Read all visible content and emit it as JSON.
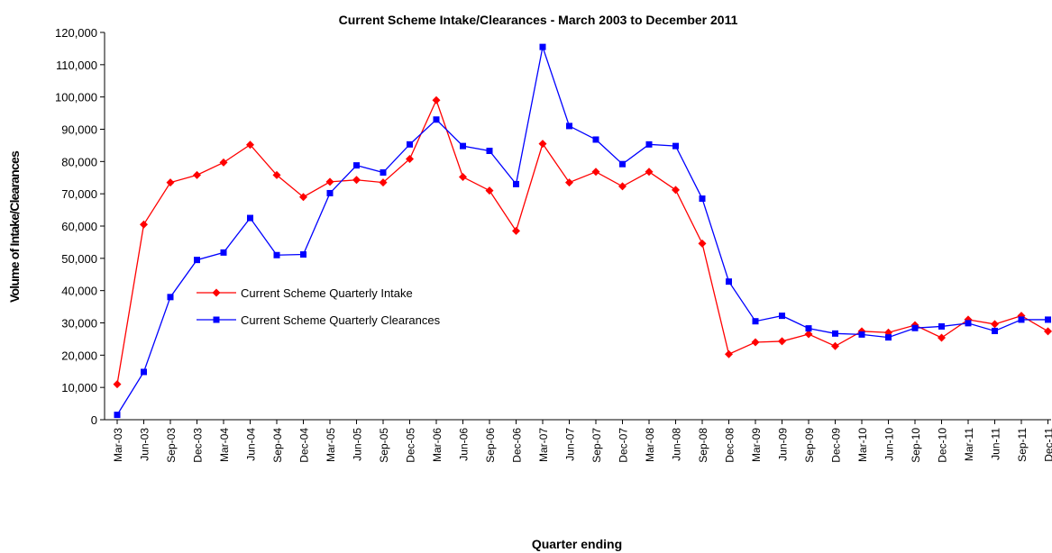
{
  "chart_data": {
    "type": "line",
    "title": "Current Scheme Intake/Clearances - March 2003 to December 2011",
    "x_label": "Quarter ending",
    "y_label": "Volume of Intake/Clearances",
    "categories": [
      "Mar-03",
      "Jun-03",
      "Sep-03",
      "Dec-03",
      "Mar-04",
      "Jun-04",
      "Sep-04",
      "Dec-04",
      "Mar-05",
      "Jun-05",
      "Sep-05",
      "Dec-05",
      "Mar-06",
      "Jun-06",
      "Sep-06",
      "Dec-06",
      "Mar-07",
      "Jun-07",
      "Sep-07",
      "Dec-07",
      "Mar-08",
      "Jun-08",
      "Sep-08",
      "Dec-08",
      "Mar-09",
      "Jun-09",
      "Sep-09",
      "Dec-09",
      "Mar-10",
      "Jun-10",
      "Sep-10",
      "Dec-10",
      "Mar-11",
      "Jun-11",
      "Sep-11",
      "Dec-11"
    ],
    "series": [
      {
        "name": "Current Scheme Quarterly Intake",
        "color": "#ff0000",
        "marker": "diamond",
        "values": [
          11000,
          60500,
          73500,
          75800,
          79700,
          85200,
          75800,
          69000,
          73700,
          74300,
          73500,
          80800,
          99000,
          75200,
          71000,
          58500,
          85500,
          73500,
          76800,
          72300,
          76800,
          71200,
          54600,
          20300,
          24000,
          24300,
          26500,
          22800,
          27400,
          27000,
          29300,
          25400,
          31000,
          29600,
          32200,
          27400
        ]
      },
      {
        "name": "Current Scheme Quarterly Clearances",
        "color": "#0000ff",
        "marker": "square",
        "values": [
          1500,
          14800,
          38000,
          49500,
          51800,
          62500,
          51000,
          51200,
          70200,
          78800,
          76600,
          85300,
          93000,
          84800,
          83300,
          73000,
          115500,
          91000,
          86800,
          79200,
          85300,
          84800,
          68500,
          42800,
          30500,
          32200,
          28300,
          26700,
          26400,
          25500,
          28400,
          28900,
          29900,
          27500,
          31000,
          31000
        ]
      }
    ],
    "ylim": [
      0,
      120000
    ],
    "yticks": [
      0,
      {
        "value": 10000,
        "label": "10,000"
      },
      {
        "value": 20000,
        "label": "20,000"
      },
      {
        "value": 30000,
        "label": "30,000"
      },
      {
        "value": 40000,
        "label": "40,000"
      },
      {
        "value": 50000,
        "label": "50,000"
      },
      {
        "value": 60000,
        "label": "60,000"
      },
      {
        "value": 70000,
        "label": "70,000"
      },
      {
        "value": 80000,
        "label": "80,000"
      },
      {
        "value": 90000,
        "label": "90,000"
      },
      {
        "value": 100000,
        "label": "100,000"
      },
      {
        "value": 110000,
        "label": "110,000"
      },
      {
        "value": 120000,
        "label": "120,000"
      }
    ],
    "grid": false,
    "legend": "left"
  }
}
